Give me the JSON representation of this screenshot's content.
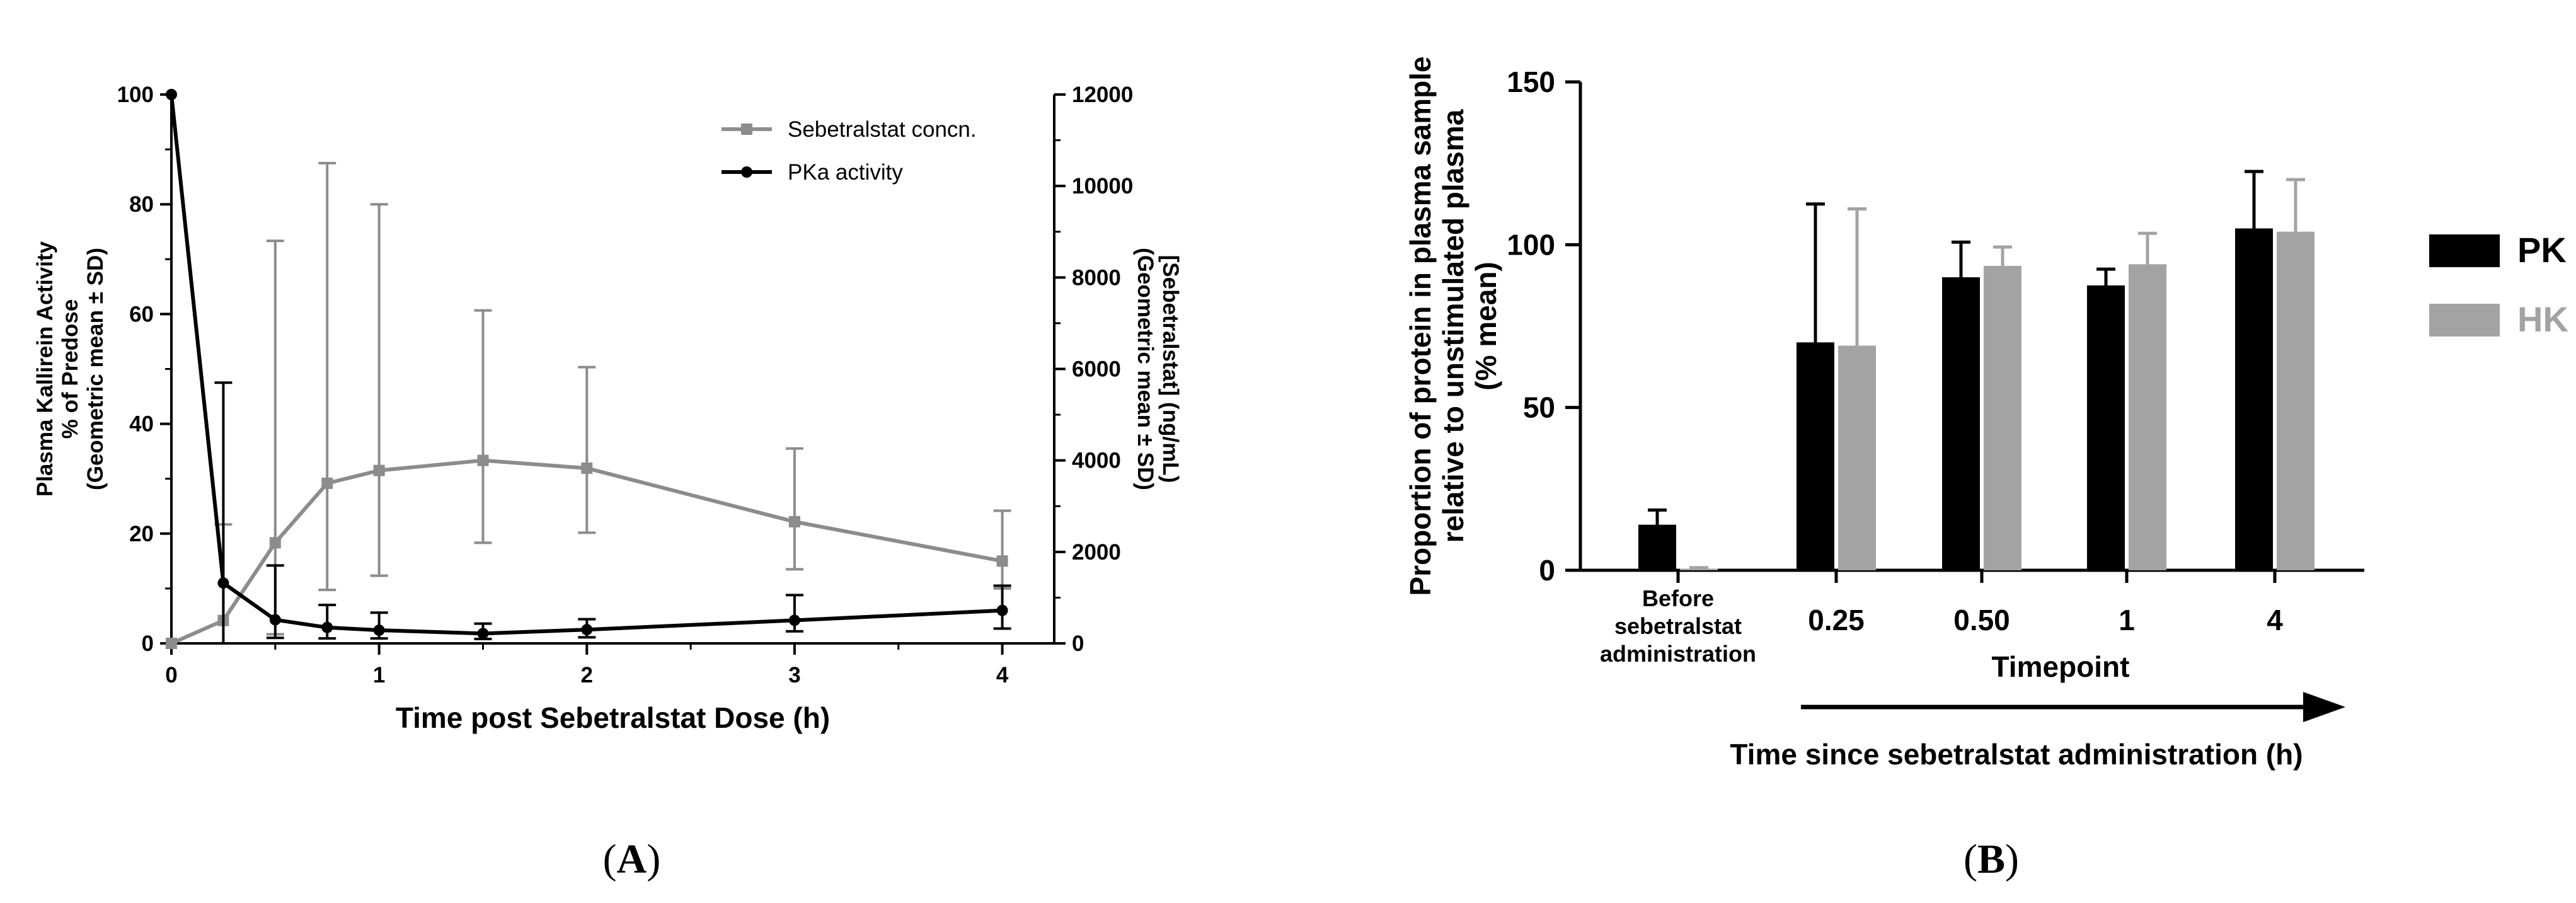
{
  "chart_data": [
    {
      "type": "line",
      "panel_label": "A",
      "panel_label_parts": [
        "(",
        "A",
        ")"
      ],
      "xlabel": "Time post Sebetralstat Dose (h)",
      "ylabel_left_lines": [
        "Plasma Kallirein Activity",
        "% of Predose",
        "(Geometric mean ± SD)"
      ],
      "ylabel_right_lines": [
        "[Sebetralstat] (ng/mL)",
        "(Geometric mean ± SD)"
      ],
      "xlim": [
        0,
        4.25
      ],
      "ylim_left": [
        0,
        100
      ],
      "ylim_right": [
        0,
        12000
      ],
      "x_ticks": [
        0,
        1,
        2,
        3,
        4
      ],
      "x_tick_labels": [
        "0",
        "1",
        "2",
        "3",
        "4"
      ],
      "y_left_ticks": [
        0,
        20,
        40,
        60,
        80,
        100
      ],
      "y_left_tick_labels": [
        "0",
        "20",
        "40",
        "60",
        "80",
        "100"
      ],
      "y_right_ticks": [
        0,
        2000,
        4000,
        6000,
        8000,
        10000,
        12000
      ],
      "y_right_tick_labels": [
        "0",
        "2000",
        "4000",
        "6000",
        "8000",
        "10000",
        "12000"
      ],
      "legend_position": "top-right",
      "series": [
        {
          "name": "Sebetralstat concn.",
          "axis": "right",
          "color": "#8c8c8c",
          "marker": "square",
          "x": [
            0,
            0.25,
            0.5,
            0.75,
            1,
            1.5,
            2,
            3,
            4
          ],
          "y": [
            0,
            500,
            2200,
            3500,
            3780,
            4000,
            3830,
            2660,
            1800
          ],
          "err_upper": [
            0,
            2600,
            8800,
            10500,
            9600,
            7280,
            6040,
            4260,
            2900
          ],
          "err_lower": [
            0,
            500,
            200,
            1170,
            1480,
            2200,
            2420,
            1620,
            1200
          ]
        },
        {
          "name": "PKa activity",
          "axis": "left",
          "color": "#000000",
          "marker": "circle",
          "x": [
            0,
            0.25,
            0.5,
            0.75,
            1,
            1.5,
            2,
            3,
            4
          ],
          "y": [
            100,
            11,
            4.3,
            2.9,
            2.4,
            1.8,
            2.5,
            4.2,
            6
          ],
          "err_upper": [
            100,
            47.5,
            14.2,
            7,
            5.6,
            3.6,
            4.4,
            8.8,
            10.5
          ],
          "err_lower": [
            100,
            0,
            1,
            0.9,
            0.9,
            0.8,
            1.1,
            2.2,
            2.7
          ]
        }
      ]
    },
    {
      "type": "bar",
      "panel_label": "B",
      "panel_label_parts": [
        "(",
        "B",
        ")"
      ],
      "ylabel_lines": [
        "Proportion of protein in plasma sample",
        "relative to unstimulated plasma",
        "(% mean)"
      ],
      "xlabel": "Timepoint",
      "arrow_label": "Time since sebetralstat administration (h)",
      "categories": [
        "Before sebetralstat administration",
        "0.25",
        "0.50",
        "1",
        "4"
      ],
      "category_label_lines": [
        [
          "Before",
          "sebetralstat",
          "administration"
        ],
        [
          "0.25"
        ],
        [
          "0.50"
        ],
        [
          "1"
        ],
        [
          "4"
        ]
      ],
      "ylim": [
        0,
        150
      ],
      "y_ticks": [
        0,
        50,
        100,
        150
      ],
      "y_tick_labels": [
        "0",
        "50",
        "100",
        "150"
      ],
      "legend_position": "right",
      "series": [
        {
          "name": "PK",
          "color": "#000000",
          "values": [
            14,
            70,
            90,
            87.5,
            105
          ],
          "err_upper": [
            18.5,
            112.5,
            100.8,
            92.5,
            122.5
          ]
        },
        {
          "name": "HK",
          "color": "#a3a3a3",
          "values": [
            0.5,
            69,
            93.5,
            94,
            104
          ],
          "err_upper": [
            0.8,
            111,
            99.3,
            103.5,
            120
          ]
        }
      ]
    }
  ]
}
